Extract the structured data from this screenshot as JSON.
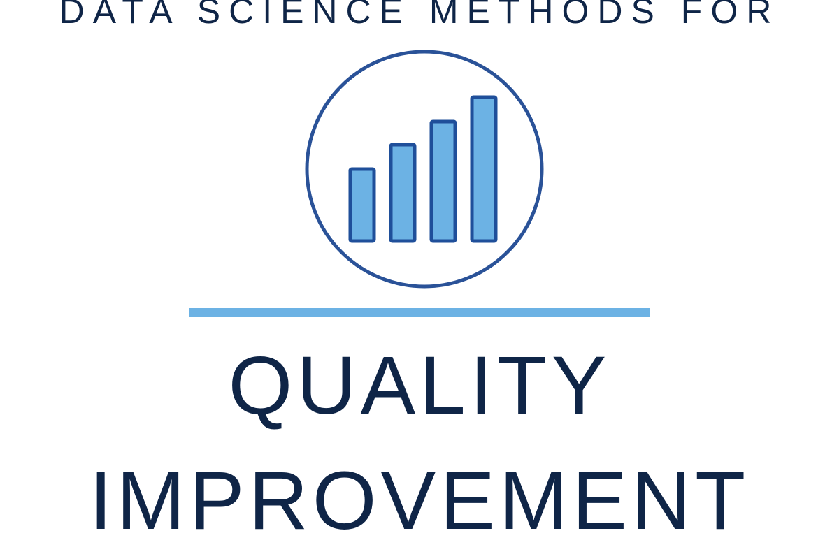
{
  "header": {
    "kicker": "DATA SCIENCE METHODS FOR"
  },
  "logo": {
    "icon": "bar-chart-circle-icon",
    "bars_relative_heights": [
      0.5,
      0.67,
      0.83,
      1.0
    ]
  },
  "title": {
    "line1": "QUALITY",
    "line2": "IMPROVEMENT"
  },
  "colors": {
    "navy": "#0f2547",
    "ring_stroke": "#2a5298",
    "bar_fill": "#6cb2e4",
    "bar_stroke": "#1f4f9a",
    "divider": "#6cb2e4",
    "background": "#ffffff"
  }
}
